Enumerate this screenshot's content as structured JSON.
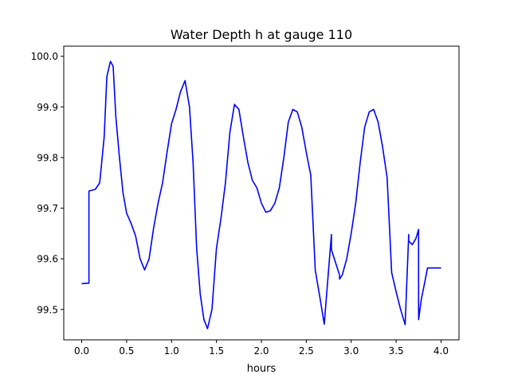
{
  "chart_data": {
    "type": "line",
    "title": "Water Depth h at gauge 110",
    "xlabel": "hours",
    "ylabel": "",
    "xlim": [
      -0.2,
      4.2
    ],
    "ylim": [
      99.44,
      100.02
    ],
    "xticks": [
      0.0,
      0.5,
      1.0,
      1.5,
      2.0,
      2.5,
      3.0,
      3.5,
      4.0
    ],
    "xtick_labels": [
      "0.0",
      "0.5",
      "1.0",
      "1.5",
      "2.0",
      "2.5",
      "3.0",
      "3.5",
      "4.0"
    ],
    "yticks": [
      99.5,
      99.6,
      99.7,
      99.8,
      99.9,
      100.0
    ],
    "ytick_labels": [
      "99.5",
      "99.6",
      "99.7",
      "99.8",
      "99.9",
      "100.0"
    ],
    "grid": false,
    "legend": "none",
    "series": [
      {
        "color": "#0000ff",
        "x": [
          0.0,
          0.08,
          0.08,
          0.15,
          0.2,
          0.25,
          0.28,
          0.32,
          0.35,
          0.38,
          0.42,
          0.46,
          0.5,
          0.55,
          0.6,
          0.65,
          0.7,
          0.75,
          0.8,
          0.85,
          0.9,
          0.95,
          1.0,
          1.05,
          1.1,
          1.15,
          1.2,
          1.24,
          1.28,
          1.32,
          1.36,
          1.4,
          1.45,
          1.5,
          1.55,
          1.6,
          1.65,
          1.7,
          1.75,
          1.8,
          1.85,
          1.9,
          1.95,
          2.0,
          2.05,
          2.1,
          2.15,
          2.2,
          2.25,
          2.3,
          2.35,
          2.4,
          2.45,
          2.5,
          2.55,
          2.6,
          2.65,
          2.7,
          2.78,
          2.78,
          2.83,
          2.87,
          2.87,
          2.9,
          2.95,
          3.0,
          3.05,
          3.1,
          3.15,
          3.2,
          3.25,
          3.3,
          3.35,
          3.4,
          3.45,
          3.5,
          3.55,
          3.6,
          3.64,
          3.64,
          3.68,
          3.72,
          3.75,
          3.75,
          3.78,
          3.82,
          3.85,
          3.88,
          3.88,
          3.92,
          3.96,
          4.0
        ],
        "y": [
          99.551,
          99.552,
          99.734,
          99.737,
          99.75,
          99.84,
          99.96,
          99.99,
          99.98,
          99.88,
          99.8,
          99.73,
          99.69,
          99.67,
          99.645,
          99.6,
          99.578,
          99.6,
          99.66,
          99.71,
          99.75,
          99.81,
          99.867,
          99.895,
          99.93,
          99.952,
          99.9,
          99.79,
          99.62,
          99.53,
          99.48,
          99.462,
          99.5,
          99.62,
          99.68,
          99.75,
          99.85,
          99.905,
          99.895,
          99.84,
          99.79,
          99.755,
          99.74,
          99.71,
          99.692,
          99.695,
          99.71,
          99.74,
          99.8,
          99.87,
          99.895,
          99.89,
          99.86,
          99.81,
          99.765,
          99.578,
          99.525,
          99.471,
          99.648,
          99.618,
          99.59,
          99.568,
          99.56,
          99.568,
          99.6,
          99.65,
          99.71,
          99.79,
          99.86,
          99.89,
          99.895,
          99.87,
          99.82,
          99.76,
          99.573,
          99.535,
          99.5,
          99.47,
          99.648,
          99.635,
          99.628,
          99.64,
          99.658,
          99.48,
          99.52,
          99.555,
          99.582,
          99.582,
          99.582,
          99.582,
          99.582,
          99.582
        ]
      }
    ]
  }
}
